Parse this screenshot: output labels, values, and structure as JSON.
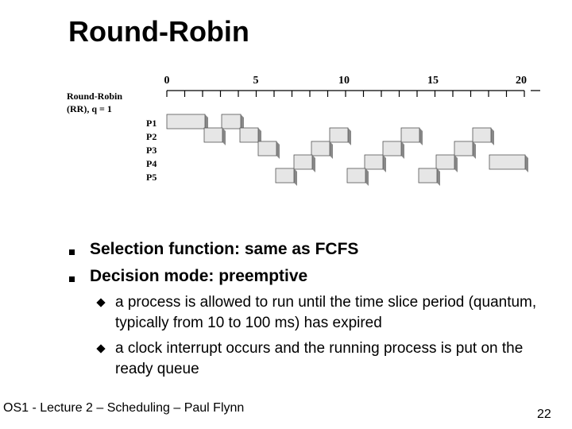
{
  "slide": {
    "title": "Round-Robin",
    "diagram": {
      "label_line1": "Round-Robin",
      "label_line2": "(RR), q = 1",
      "ticks": [
        "0",
        "5",
        "10",
        "15",
        "20"
      ],
      "processes": [
        "P1",
        "P2",
        "P3",
        "P4",
        "P5"
      ]
    },
    "bullets": [
      "Selection function: same as FCFS",
      "Decision mode: preemptive"
    ],
    "subbullets": [
      "a process is allowed to run until the time slice period (quantum, typically from 10 to 100 ms) has expired",
      "a clock interrupt occurs and the running process is put on the ready queue"
    ],
    "footer": "OS1 - Lecture 2 – Scheduling – Paul Flynn",
    "page_number": "22"
  }
}
